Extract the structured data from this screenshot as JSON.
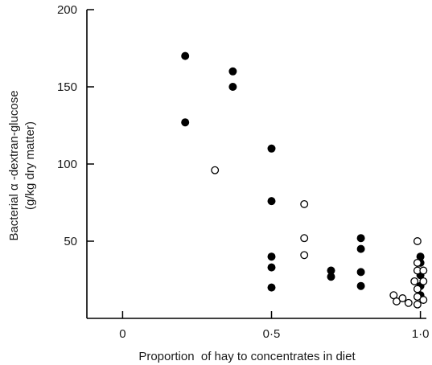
{
  "chart_data": {
    "type": "scatter",
    "xlabel": "Proportion  of hay to concentrates in diet",
    "ylabel": [
      "Bacterial α -dextran-glucose",
      "(g/kg dry matter)"
    ],
    "xlim": [
      -0.12,
      1.02
    ],
    "ylim": [
      0,
      200
    ],
    "x_ticks": [
      {
        "value": 0,
        "label": "0"
      },
      {
        "value": 0.5,
        "label": "0·5"
      },
      {
        "value": 1.0,
        "label": "1·0"
      }
    ],
    "y_ticks": [
      {
        "value": 50,
        "label": "50"
      },
      {
        "value": 100,
        "label": "100"
      },
      {
        "value": 150,
        "label": "150"
      },
      {
        "value": 200,
        "label": "200"
      }
    ],
    "grid": false,
    "legend": "none",
    "series": [
      {
        "marker": "filled-circle",
        "color": "#000000",
        "points": [
          [
            0.21,
            170
          ],
          [
            0.21,
            127
          ],
          [
            0.37,
            160
          ],
          [
            0.37,
            150
          ],
          [
            0.5,
            110
          ],
          [
            0.5,
            76
          ],
          [
            0.5,
            40
          ],
          [
            0.5,
            33
          ],
          [
            0.5,
            20
          ],
          [
            0.7,
            31
          ],
          [
            0.7,
            27
          ],
          [
            0.8,
            52
          ],
          [
            0.8,
            45
          ],
          [
            0.8,
            30
          ],
          [
            0.8,
            21
          ],
          [
            1.0,
            40
          ],
          [
            1.0,
            36
          ],
          [
            1.0,
            28
          ],
          [
            1.0,
            21
          ],
          [
            1.0,
            15
          ]
        ]
      },
      {
        "marker": "open-circle",
        "color": "#000000",
        "points": [
          [
            0.31,
            96
          ],
          [
            0.61,
            74
          ],
          [
            0.61,
            52
          ],
          [
            0.61,
            41
          ],
          [
            0.91,
            15
          ],
          [
            0.92,
            11
          ],
          [
            0.94,
            13
          ],
          [
            0.96,
            10
          ],
          [
            0.99,
            50
          ],
          [
            0.99,
            36
          ],
          [
            0.99,
            31
          ],
          [
            0.98,
            24
          ],
          [
            0.99,
            19
          ],
          [
            0.99,
            14
          ],
          [
            0.99,
            9
          ],
          [
            1.01,
            31
          ],
          [
            1.01,
            24
          ],
          [
            1.01,
            12
          ]
        ]
      }
    ]
  }
}
